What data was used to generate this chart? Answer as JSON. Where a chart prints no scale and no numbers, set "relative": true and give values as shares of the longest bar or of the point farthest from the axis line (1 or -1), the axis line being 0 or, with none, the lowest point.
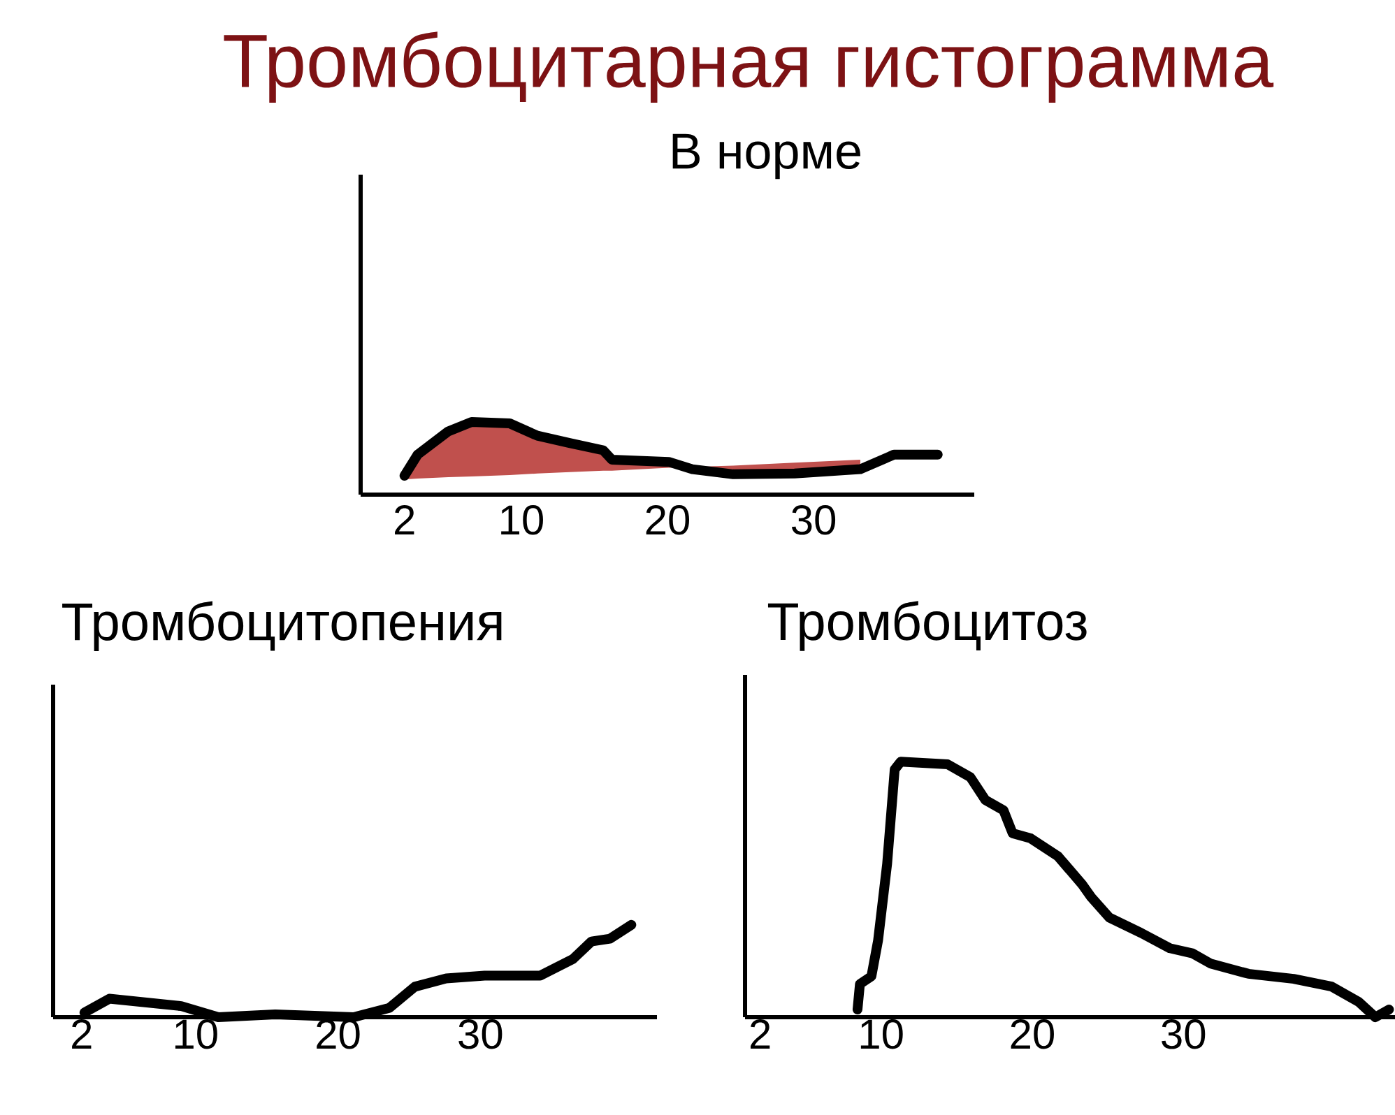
{
  "chart_data": [
    {
      "type": "line",
      "title": "Тромбоцитарная гистограмма",
      "subtitle": "В норме",
      "relative": true,
      "tick_labels": "x",
      "xlim": [
        -1,
        41
      ],
      "xticks": [
        2,
        10,
        20,
        30
      ],
      "series": [
        {
          "type": "line",
          "color": "#000000",
          "x": [
            2.0,
            2.9,
            5.0,
            6.6,
            9.2,
            11.1,
            13.3,
            15.6,
            16.2,
            20.1,
            21.7,
            24.5,
            28.7,
            33.2,
            35.5,
            38.5
          ],
          "values": [
            0.26,
            0.55,
            0.87,
            1.0,
            0.98,
            0.81,
            0.71,
            0.61,
            0.48,
            0.45,
            0.35,
            0.28,
            0.29,
            0.35,
            0.55,
            0.55
          ],
          "upper": [
            0.26,
            0.55,
            0.87,
            1.0,
            0.98,
            0.81,
            0.71,
            0.61,
            0.48,
            0.45,
            0.35,
            0.28,
            0.29,
            0.35,
            null,
            null
          ],
          "lower": [
            0.21,
            0.22,
            0.24,
            0.25,
            0.27,
            0.29,
            0.31,
            0.33,
            0.33,
            0.37,
            0.38,
            0.4,
            0.44,
            0.48,
            null,
            null
          ]
        }
      ]
    },
    {
      "type": "line",
      "title": "Тромбоцитопения",
      "relative": true,
      "tick_labels": "x",
      "xlim": [
        0,
        42.4
      ],
      "xticks": [
        2,
        10,
        20,
        30
      ],
      "series": [
        {
          "color": "#000000",
          "x": [
            2.2,
            3.95,
            9.0,
            11.6,
            15.6,
            21.1,
            23.6,
            25.4,
            27.6,
            30.3,
            34.2,
            36.5,
            37.8,
            39.1,
            40.6
          ],
          "values": [
            0.05,
            0.2,
            0.12,
            0,
            0.03,
            0,
            0.1,
            0.33,
            0.42,
            0.45,
            0.45,
            0.63,
            0.82,
            0.85,
            1.0
          ]
        }
      ]
    },
    {
      "type": "line",
      "title": "Тромбоцитоз",
      "relative": true,
      "tick_labels": "x",
      "xlim": [
        1,
        44
      ],
      "xticks": [
        2,
        10,
        20,
        30
      ],
      "series": [
        {
          "color": "#000000",
          "x": [
            8.44,
            8.6,
            9.36,
            9.8,
            10.4,
            10.9,
            11.3,
            14.4,
            15.9,
            16.9,
            18.1,
            18.7,
            19.9,
            21.7,
            23.3,
            23.9,
            25.1,
            27.2,
            29.1,
            30.6,
            31.8,
            34.3,
            37.3,
            39.8,
            41.6,
            42.7,
            43.6
          ],
          "values": [
            0.03,
            0.13,
            0.16,
            0.3,
            0.6,
            0.97,
            1.0,
            0.99,
            0.94,
            0.85,
            0.81,
            0.72,
            0.7,
            0.63,
            0.52,
            0.47,
            0.39,
            0.33,
            0.27,
            0.25,
            0.21,
            0.17,
            0.15,
            0.12,
            0.06,
            0,
            0.03
          ]
        }
      ]
    }
  ]
}
